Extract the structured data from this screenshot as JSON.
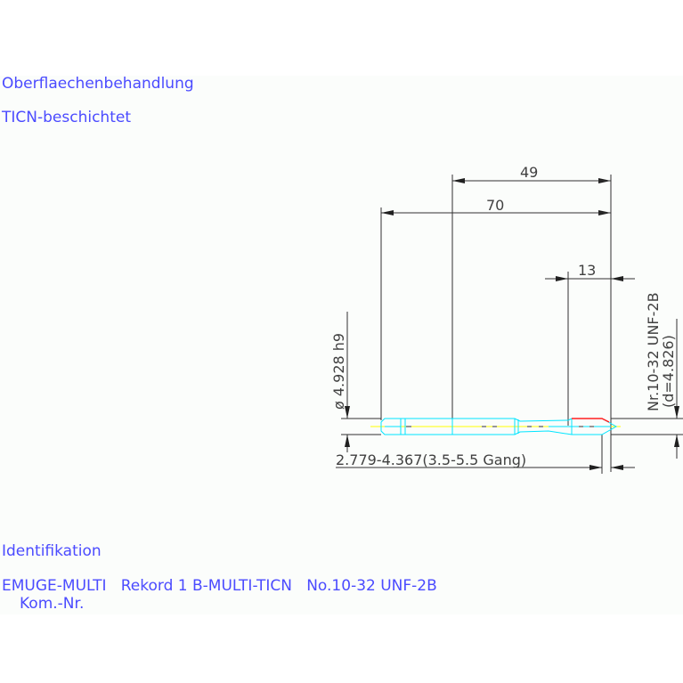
{
  "notes": {
    "surface_heading": "Oberflaechenbehandlung",
    "surface_value": "TICN-beschichtet",
    "id_heading": "Identifikation",
    "id_value": "EMUGE-MULTI   Rekord 1 B-MULTI-TICN   No.10-32 UNF-2B",
    "kom_label": "Kom.-Nr."
  },
  "dimensions": {
    "thread_length": "49",
    "total_length": "70",
    "chamfer_length": "13",
    "shank_diameter": "ø 4.928 h9",
    "thread_spec": "Nr.10-32 UNF-2B",
    "thread_diameter": "(d=4.826)",
    "chamfer_spec": "2.779-4.367(3.5-5.5 Gang)"
  },
  "colors": {
    "text": "#4b4bff",
    "tool_outline": "#00e5ff",
    "chamfer": "#ff2020",
    "centerline": "#ffff00",
    "dimension": "#303030"
  }
}
